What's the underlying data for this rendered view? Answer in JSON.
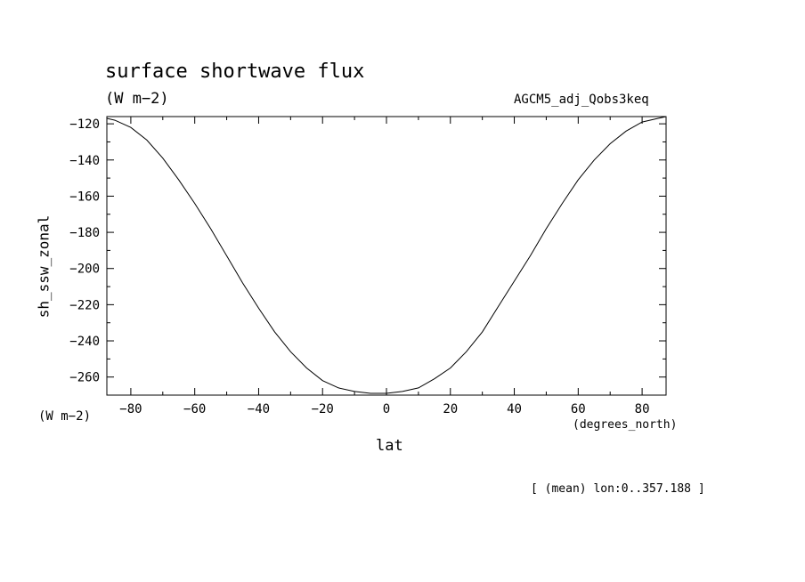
{
  "header": {
    "title": "surface shortwave flux",
    "units": "(W m−2)",
    "run_name": "AGCM5_adj_Qobs3keq"
  },
  "axes": {
    "y_label": "sh_ssw_zonal",
    "y_units": "(W m−2)",
    "x_label": "lat",
    "x_units": "(degrees_north)"
  },
  "footer": {
    "note": "[ (mean) lon:0..357.188 ]"
  },
  "chart_data": {
    "type": "line",
    "xlim": [
      -87.5,
      87.5
    ],
    "ylim": [
      -270,
      -116
    ],
    "x_ticks": [
      -80,
      -60,
      -40,
      -20,
      0,
      20,
      40,
      60,
      80
    ],
    "y_ticks": [
      -120,
      -140,
      -160,
      -180,
      -200,
      -220,
      -240,
      -260
    ],
    "grid": false,
    "series": [
      {
        "color": "#000000",
        "x": [
          -87.5,
          -85,
          -80,
          -75,
          -70,
          -65,
          -60,
          -55,
          -50,
          -45,
          -40,
          -35,
          -30,
          -25,
          -20,
          -15,
          -10,
          -5,
          0,
          5,
          10,
          15,
          20,
          25,
          30,
          35,
          40,
          45,
          50,
          55,
          60,
          65,
          70,
          75,
          80,
          85,
          87.5
        ],
        "y": [
          -117,
          -118,
          -122,
          -129,
          -139,
          -151,
          -164,
          -178,
          -193,
          -208,
          -222,
          -235,
          -246,
          -255,
          -262,
          -266,
          -268,
          -269,
          -269,
          -268,
          -266,
          -261,
          -255,
          -246,
          -235,
          -221,
          -207,
          -193,
          -178,
          -164,
          -151,
          -140,
          -131,
          -124,
          -119,
          -117,
          -116
        ]
      }
    ]
  }
}
